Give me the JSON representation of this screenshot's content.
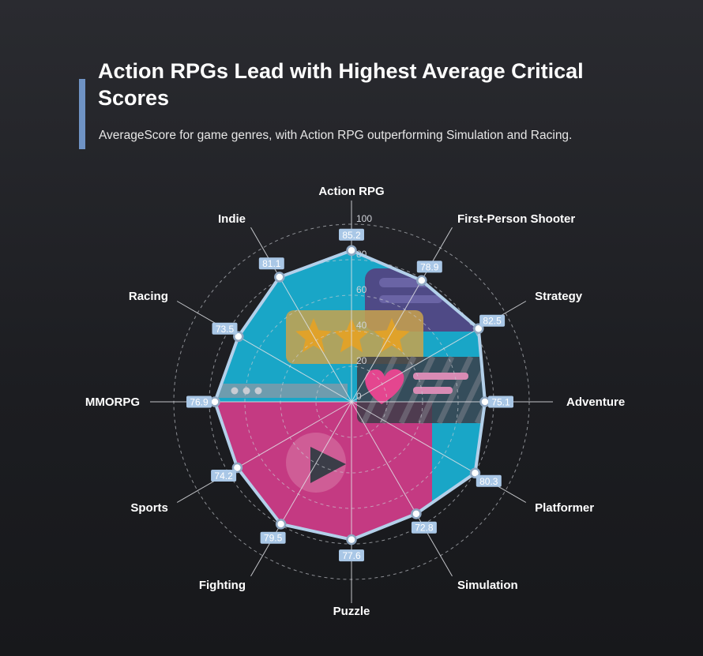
{
  "header": {
    "title": "Action RPGs Lead with Highest Average Critical Scores",
    "subtitle": "AverageScore for game genres, with Action RPG outperforming Simulation and Racing."
  },
  "colors": {
    "accent": "#6f93c4",
    "outline": "#b3d0ea",
    "cyan": "#19a6c7",
    "magenta": "#c43a82",
    "label_bg": "#a9c7e6"
  },
  "chart_data": {
    "type": "radar",
    "categories": [
      "Action RPG",
      "First-Person Shooter",
      "Strategy",
      "Adventure",
      "Platformer",
      "Simulation",
      "Puzzle",
      "Fighting",
      "Sports",
      "MMORPG",
      "Racing",
      "Indie"
    ],
    "values": [
      85.2,
      78.9,
      82.5,
      75.1,
      80.3,
      72.8,
      77.6,
      79.5,
      74.2,
      76.9,
      73.5,
      81.1
    ],
    "value_labels": [
      "85.2",
      "78.9",
      "82.5",
      "75.1",
      "80.3",
      "72.8",
      "77.6",
      "79.5",
      "74.2",
      "76.9",
      "73.5",
      "81.1"
    ],
    "r_ticks": [
      "0",
      "20",
      "40",
      "60",
      "80",
      "100"
    ],
    "r_range": [
      0,
      100
    ],
    "grid": true,
    "legend": false
  }
}
